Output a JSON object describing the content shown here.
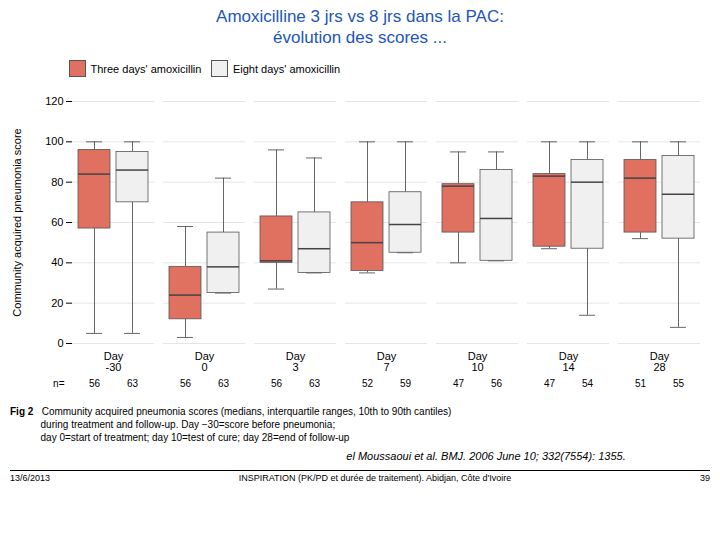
{
  "chart_data": {
    "type": "box",
    "title": "Amoxicilline 3 jrs vs 8 jrs dans la PAC:\névolution des scores ...",
    "categories": [
      "Day\n-30",
      "Day\n0",
      "Day\n3",
      "Day\n7",
      "Day\n10",
      "Day\n14",
      "Day\n28"
    ],
    "ylabel": "Community acquired pneumonia score",
    "ylim": [
      0,
      120
    ],
    "yticks": [
      0,
      20,
      40,
      60,
      80,
      100,
      120
    ],
    "grid": true,
    "legend": "upper left",
    "n_label": "n=",
    "series": [
      {
        "name": "Three days' amoxicillin",
        "color": "#e07060",
        "n": [
          56,
          56,
          56,
          52,
          47,
          47,
          51
        ],
        "whislo": [
          5,
          3,
          27,
          35,
          40,
          47,
          52
        ],
        "q1": [
          57,
          12,
          40,
          36,
          55,
          48,
          55
        ],
        "med": [
          84,
          24,
          41,
          50,
          78,
          83,
          82
        ],
        "q3": [
          96,
          38,
          63,
          70,
          79,
          84,
          91
        ],
        "whishi": [
          100,
          58,
          96,
          100,
          95,
          100,
          100
        ]
      },
      {
        "name": "Eight days' amoxicillin",
        "color": "#f0f0f0",
        "n": [
          63,
          63,
          63,
          59,
          56,
          54,
          55
        ],
        "whislo": [
          5,
          25,
          35,
          45,
          41,
          14,
          8
        ],
        "q1": [
          70,
          25,
          35,
          45,
          41,
          47,
          52
        ],
        "med": [
          86,
          38,
          47,
          59,
          62,
          80,
          74
        ],
        "q3": [
          95,
          55,
          65,
          75,
          86,
          91,
          93
        ],
        "whishi": [
          100,
          82,
          92,
          100,
          95,
          100,
          100
        ]
      }
    ],
    "caption_label": "Fig 2",
    "caption": "   Community acquired pneumonia scores (medians, interquartile ranges, 10th to 90th cantiles)\n           during treatment and follow-up. Day −30=score before pneumonia;\n           day 0=start of treatment; day 10=test of cure; day 28=end of follow-up",
    "citation": "el Moussaoui et al. BMJ. 2006 June 10; 332(7554): 1355.",
    "footer_left": "13/6/2013",
    "footer_center": "INSPIRATION (PK/PD et durée de traitement). Abidjan, Côte d'Ivoire",
    "footer_right": "39"
  }
}
